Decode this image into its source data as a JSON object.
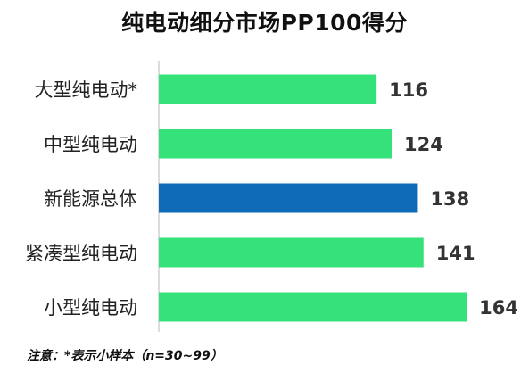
{
  "chart_data": {
    "type": "bar",
    "orientation": "horizontal",
    "title": "纯电动细分市场PP100得分",
    "categories": [
      "大型纯电动*",
      "中型纯电动",
      "新能源总体",
      "紧凑型纯电动",
      "小型纯电动"
    ],
    "values": [
      116,
      124,
      138,
      141,
      164
    ],
    "bar_colors": [
      "#35e27a",
      "#35e27a",
      "#0e6bb8",
      "#35e27a",
      "#35e27a"
    ],
    "highlight_category": "新能源总体",
    "xlim": [
      0,
      172
    ],
    "grid": false,
    "legend": "none"
  },
  "footnote": "注意：*表示小样本（n=30~99）",
  "colors": {
    "primary_bar": "#35e27a",
    "highlight_bar": "#0e6bb8",
    "axis": "#d0d0d0"
  }
}
